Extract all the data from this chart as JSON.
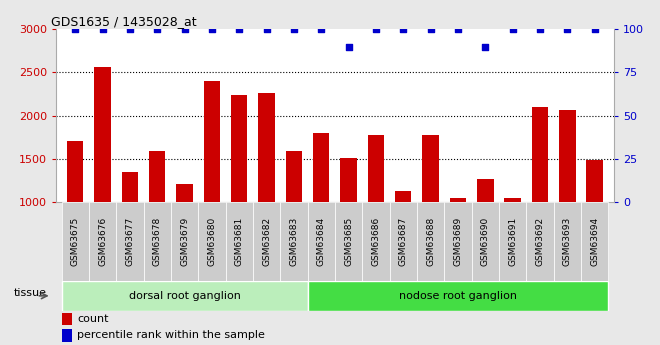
{
  "title": "GDS1635 / 1435028_at",
  "samples": [
    "GSM63675",
    "GSM63676",
    "GSM63677",
    "GSM63678",
    "GSM63679",
    "GSM63680",
    "GSM63681",
    "GSM63682",
    "GSM63683",
    "GSM63684",
    "GSM63685",
    "GSM63686",
    "GSM63687",
    "GSM63688",
    "GSM63689",
    "GSM63690",
    "GSM63691",
    "GSM63692",
    "GSM63693",
    "GSM63694"
  ],
  "counts": [
    1700,
    2560,
    1345,
    1590,
    1210,
    2400,
    2240,
    2260,
    1590,
    1800,
    1510,
    1775,
    1120,
    1775,
    1050,
    1270,
    1040,
    2100,
    2060,
    1490
  ],
  "percentile_ranks": [
    100,
    100,
    100,
    100,
    100,
    100,
    100,
    100,
    100,
    100,
    90,
    100,
    100,
    100,
    100,
    90,
    100,
    100,
    100,
    100
  ],
  "bar_color": "#cc0000",
  "dot_color": "#0000cc",
  "ylim_left": [
    1000,
    3000
  ],
  "ylim_right": [
    0,
    100
  ],
  "yticks_left": [
    1000,
    1500,
    2000,
    2500,
    3000
  ],
  "yticks_right": [
    0,
    25,
    50,
    75,
    100
  ],
  "gridlines": [
    1500,
    2000,
    2500
  ],
  "groups": [
    {
      "label": "dorsal root ganglion",
      "start": 0,
      "end": 9,
      "color": "#bbeebb"
    },
    {
      "label": "nodose root ganglion",
      "start": 9,
      "end": 20,
      "color": "#44dd44"
    }
  ],
  "tissue_label": "tissue",
  "legend_count_label": "count",
  "legend_pct_label": "percentile rank within the sample",
  "bg_color": "#e8e8e8",
  "plot_bg": "#ffffff",
  "fig_bg": "#e8e8e8"
}
